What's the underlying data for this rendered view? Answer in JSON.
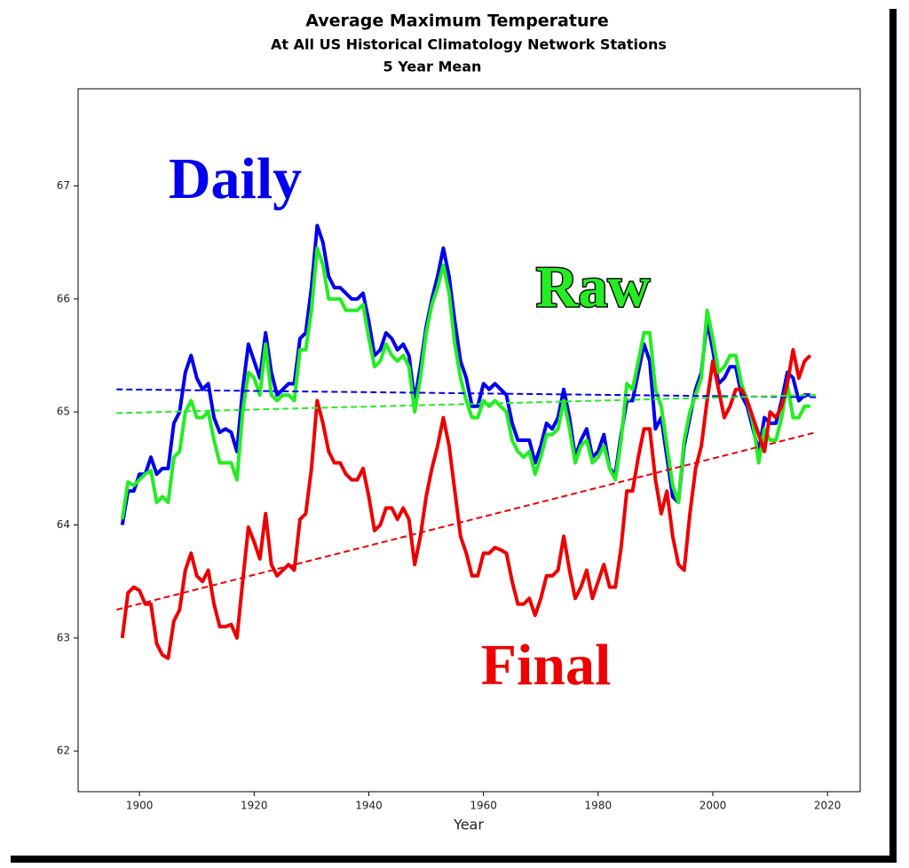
{
  "chart_data": {
    "type": "line",
    "title": "Average Maximum Temperature",
    "subtitle": [
      "At All US Historical Climatology Network Stations",
      "5 Year Mean"
    ],
    "xlabel": "Year",
    "xlim": [
      1889.3,
      2025.7
    ],
    "xticks": [
      1900,
      1920,
      1940,
      1960,
      1980,
      2000,
      2020
    ],
    "ylim": [
      61.64,
      67.86
    ],
    "yticks": [
      62,
      63,
      64,
      65,
      66,
      67
    ],
    "x": [
      1897,
      1898,
      1899,
      1900,
      1901,
      1902,
      1903,
      1904,
      1905,
      1906,
      1907,
      1908,
      1909,
      1910,
      1911,
      1912,
      1913,
      1914,
      1915,
      1916,
      1917,
      1918,
      1919,
      1920,
      1921,
      1922,
      1923,
      1924,
      1925,
      1926,
      1927,
      1928,
      1929,
      1930,
      1931,
      1932,
      1933,
      1934,
      1935,
      1936,
      1937,
      1938,
      1939,
      1940,
      1941,
      1942,
      1943,
      1944,
      1945,
      1946,
      1947,
      1948,
      1949,
      1950,
      1951,
      1952,
      1953,
      1954,
      1955,
      1956,
      1957,
      1958,
      1959,
      1960,
      1961,
      1962,
      1963,
      1964,
      1965,
      1966,
      1967,
      1968,
      1969,
      1970,
      1971,
      1972,
      1973,
      1974,
      1975,
      1976,
      1977,
      1978,
      1979,
      1980,
      1981,
      1982,
      1983,
      1984,
      1985,
      1986,
      1987,
      1988,
      1989,
      1990,
      1991,
      1992,
      1993,
      1994,
      1995,
      1996,
      1997,
      1998,
      1999,
      2000,
      2001,
      2002,
      2003,
      2004,
      2005,
      2006,
      2007,
      2008,
      2009,
      2010,
      2011,
      2012,
      2013,
      2014,
      2015,
      2016,
      2017
    ],
    "series": [
      {
        "color": "#0000ee",
        "values": [
          64.0,
          64.3,
          64.3,
          64.45,
          64.45,
          64.6,
          64.45,
          64.5,
          64.5,
          64.9,
          65.0,
          65.35,
          65.5,
          65.3,
          65.2,
          65.25,
          64.95,
          64.82,
          64.85,
          64.82,
          64.65,
          65.2,
          65.6,
          65.45,
          65.3,
          65.7,
          65.35,
          65.15,
          65.2,
          65.25,
          65.25,
          65.65,
          65.7,
          66.1,
          66.65,
          66.5,
          66.2,
          66.1,
          66.1,
          66.05,
          66.0,
          66.0,
          66.05,
          65.8,
          65.5,
          65.55,
          65.7,
          65.65,
          65.55,
          65.6,
          65.5,
          65.1,
          65.4,
          65.75,
          66.0,
          66.2,
          66.45,
          66.2,
          65.8,
          65.45,
          65.3,
          65.05,
          65.05,
          65.25,
          65.2,
          65.25,
          65.2,
          65.15,
          64.9,
          64.75,
          64.75,
          64.75,
          64.55,
          64.7,
          64.9,
          64.85,
          64.95,
          65.2,
          64.95,
          64.6,
          64.75,
          64.85,
          64.6,
          64.65,
          64.8,
          64.5,
          64.45,
          64.8,
          65.1,
          65.1,
          65.35,
          65.6,
          65.45,
          64.85,
          64.95,
          64.6,
          64.25,
          64.2,
          64.7,
          64.95,
          65.2,
          65.35,
          65.8,
          65.55,
          65.25,
          65.3,
          65.4,
          65.4,
          65.15,
          65.05,
          64.85,
          64.65,
          64.95,
          64.9,
          64.9,
          65.1,
          65.35,
          65.3,
          65.1,
          65.15,
          65.15
        ]
      },
      {
        "color": "#22ee22",
        "values": [
          64.05,
          64.38,
          64.35,
          64.4,
          64.45,
          64.48,
          64.2,
          64.25,
          64.2,
          64.6,
          64.65,
          65.0,
          65.1,
          64.95,
          64.95,
          65.0,
          64.75,
          64.55,
          64.55,
          64.55,
          64.4,
          65.0,
          65.35,
          65.3,
          65.15,
          65.6,
          65.15,
          65.1,
          65.15,
          65.15,
          65.1,
          65.55,
          65.55,
          65.9,
          66.45,
          66.3,
          66.0,
          66.0,
          66.0,
          65.9,
          65.9,
          65.9,
          65.95,
          65.65,
          65.4,
          65.45,
          65.6,
          65.5,
          65.45,
          65.5,
          65.4,
          65.0,
          65.3,
          65.7,
          65.95,
          66.1,
          66.3,
          66.05,
          65.6,
          65.3,
          65.1,
          64.95,
          64.95,
          65.1,
          65.05,
          65.1,
          65.05,
          65.0,
          64.75,
          64.65,
          64.6,
          64.65,
          64.45,
          64.6,
          64.8,
          64.8,
          64.85,
          65.1,
          64.85,
          64.55,
          64.7,
          64.75,
          64.55,
          64.6,
          64.7,
          64.5,
          64.4,
          64.75,
          65.25,
          65.2,
          65.45,
          65.7,
          65.7,
          65.2,
          65.05,
          64.7,
          64.35,
          64.2,
          64.75,
          65.0,
          65.15,
          65.3,
          65.9,
          65.65,
          65.35,
          65.4,
          65.5,
          65.5,
          65.25,
          65.1,
          64.9,
          64.55,
          64.85,
          64.75,
          64.75,
          64.95,
          65.25,
          64.95,
          64.95,
          65.05,
          65.05
        ]
      },
      {
        "color": "#ee0000",
        "values": [
          63.0,
          63.4,
          63.45,
          63.42,
          63.3,
          63.3,
          62.95,
          62.85,
          62.82,
          63.15,
          63.25,
          63.6,
          63.75,
          63.55,
          63.5,
          63.6,
          63.3,
          63.1,
          63.1,
          63.12,
          63.0,
          63.5,
          63.98,
          63.85,
          63.7,
          64.1,
          63.65,
          63.55,
          63.6,
          63.65,
          63.6,
          64.05,
          64.1,
          64.5,
          65.1,
          64.9,
          64.65,
          64.55,
          64.55,
          64.45,
          64.4,
          64.4,
          64.5,
          64.25,
          63.95,
          64.0,
          64.15,
          64.15,
          64.05,
          64.15,
          64.05,
          63.65,
          63.9,
          64.25,
          64.5,
          64.7,
          64.95,
          64.7,
          64.3,
          63.9,
          63.75,
          63.55,
          63.55,
          63.75,
          63.75,
          63.8,
          63.78,
          63.75,
          63.5,
          63.3,
          63.3,
          63.35,
          63.2,
          63.35,
          63.55,
          63.55,
          63.6,
          63.9,
          63.6,
          63.35,
          63.45,
          63.6,
          63.35,
          63.5,
          63.65,
          63.45,
          63.45,
          63.8,
          64.3,
          64.3,
          64.6,
          64.85,
          64.85,
          64.4,
          64.1,
          64.3,
          63.9,
          63.65,
          63.6,
          64.1,
          64.5,
          64.7,
          65.1,
          65.45,
          65.2,
          64.95,
          65.05,
          65.2,
          65.2,
          65.1,
          64.95,
          64.8,
          64.65,
          65.0,
          64.95,
          65.05,
          65.25,
          65.55,
          65.3,
          65.45,
          65.5
        ]
      }
    ],
    "trend_lines": [
      {
        "color": "#0000ee",
        "x": [
          1896,
          2018
        ],
        "values": [
          65.2,
          65.13
        ]
      },
      {
        "color": "#22ee22",
        "x": [
          1896,
          2018
        ],
        "values": [
          64.99,
          65.15
        ]
      },
      {
        "color": "#ee0000",
        "x": [
          1896,
          2018
        ],
        "values": [
          63.25,
          64.82
        ]
      }
    ],
    "annotations": [
      {
        "text": "Daily",
        "color": "#0000ee"
      },
      {
        "text": "Raw",
        "color": "#22ee22"
      },
      {
        "text": "Final",
        "color": "#ee0000"
      }
    ]
  }
}
